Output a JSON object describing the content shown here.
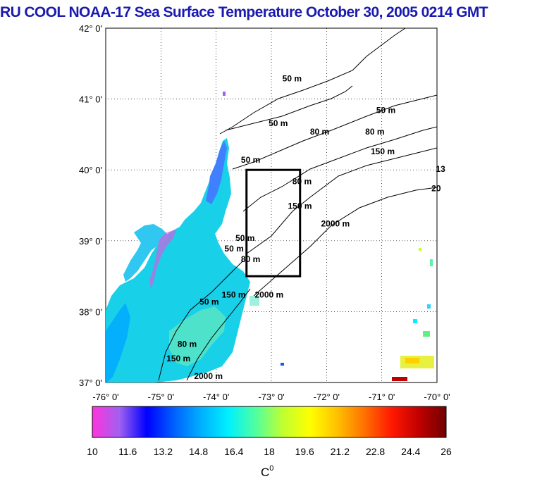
{
  "title": "RU COOL  NOAA-17 Sea Surface Temperature October 30, 2005 0214 GMT",
  "map": {
    "lat_labels": [
      "42° 0'",
      "41° 0'",
      "40° 0'",
      "39° 0'",
      "38° 0'",
      "37° 0'"
    ],
    "lat_values": [
      42,
      41,
      40,
      39,
      38,
      37
    ],
    "lon_labels": [
      "-76° 0'",
      "-75° 0'",
      "-74° 0'",
      "-73° 0'",
      "-72° 0'",
      "-71° 0'",
      "-70° 0'"
    ],
    "lon_values": [
      -76,
      -75,
      -74,
      -73,
      -72,
      -71,
      -70
    ],
    "lat_range": [
      37,
      42
    ],
    "lon_range": [
      -76,
      -70
    ],
    "study_box": {
      "lon_min": -73.45,
      "lon_max": -72.48,
      "lat_min": 38.5,
      "lat_max": 40.0
    },
    "contour_labels": [
      {
        "text": "50 m",
        "lon": -72.8,
        "lat": 41.25
      },
      {
        "text": "50 m",
        "lon": -73.05,
        "lat": 40.62
      },
      {
        "text": "50 m",
        "lon": -71.1,
        "lat": 40.8
      },
      {
        "text": "80 m",
        "lon": -72.3,
        "lat": 40.5
      },
      {
        "text": "80 m",
        "lon": -71.3,
        "lat": 40.5
      },
      {
        "text": "150 m",
        "lon": -71.2,
        "lat": 40.22
      },
      {
        "text": "50 m",
        "lon": -73.55,
        "lat": 40.1
      },
      {
        "text": "80 m",
        "lon": -72.62,
        "lat": 39.8
      },
      {
        "text": "150 m",
        "lon": -72.7,
        "lat": 39.45
      },
      {
        "text": "2000 m",
        "lon": -72.1,
        "lat": 39.2
      },
      {
        "text": "50 m",
        "lon": -73.65,
        "lat": 39.0
      },
      {
        "text": "50 m",
        "lon": -73.85,
        "lat": 38.85
      },
      {
        "text": "80 m",
        "lon": -73.55,
        "lat": 38.7
      },
      {
        "text": "150 m",
        "lon": -73.9,
        "lat": 38.2
      },
      {
        "text": "50 m",
        "lon": -74.3,
        "lat": 38.1
      },
      {
        "text": "2000 m",
        "lon": -73.3,
        "lat": 38.2
      },
      {
        "text": "80 m",
        "lon": -74.7,
        "lat": 37.5
      },
      {
        "text": "150 m",
        "lon": -74.9,
        "lat": 37.3
      },
      {
        "text": "2000 m",
        "lon": -74.4,
        "lat": 37.05
      },
      {
        "text": "13",
        "lon": -70.02,
        "lat": 39.97
      },
      {
        "text": "20",
        "lon": -70.1,
        "lat": 39.7
      }
    ]
  },
  "colorbar": {
    "tick_labels": [
      "10",
      "11.6",
      "13.2",
      "14.8",
      "16.4",
      "18",
      "19.6",
      "21.2",
      "22.8",
      "24.4",
      "26"
    ],
    "min": 10,
    "max": 26,
    "unit": "C",
    "unit_superscript": "0",
    "colors": [
      "#ff33dd",
      "#a060f0",
      "#0000ff",
      "#0060ff",
      "#00b0ff",
      "#00f0ff",
      "#50ffa0",
      "#c0ff30",
      "#ffff00",
      "#ffc000",
      "#ff7000",
      "#ff1800",
      "#c00000",
      "#700000"
    ]
  }
}
